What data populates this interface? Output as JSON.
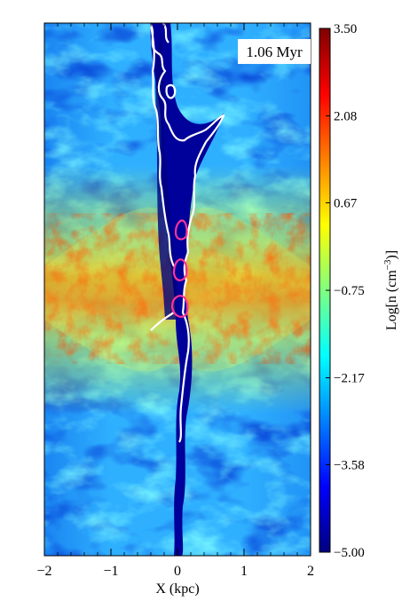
{
  "chart_data": {
    "type": "heatmap",
    "title": "",
    "annotation": "1.06 Myr",
    "xlabel": "X (kpc)",
    "ylabel": "",
    "xlim": [
      -2,
      2
    ],
    "x_ticks": [
      -2,
      -1,
      0,
      1,
      2
    ],
    "x_tick_labels": [
      "−2",
      "−1",
      "0",
      "1",
      "2"
    ],
    "colorbar": {
      "label_prefix": "Log[n (cm",
      "label_exponent": "−3",
      "label_suffix": ")]",
      "range": [
        -5.0,
        3.5
      ],
      "ticks": [
        3.5,
        2.08,
        0.67,
        -0.75,
        -2.17,
        -3.58,
        -5.0
      ],
      "tick_labels": [
        "3.50",
        "2.08",
        "0.67",
        "−0.75",
        "−2.17",
        "−3.58",
        "−5.00"
      ],
      "colormap": [
        "#00007f",
        "#0000ff",
        "#0080ff",
        "#00ffff",
        "#80ff80",
        "#ffff00",
        "#ff8000",
        "#ff0000",
        "#7f0000"
      ]
    },
    "contours": [
      {
        "level": "outflow boundary",
        "color": "#ffffff"
      },
      {
        "level": "dense gas",
        "color": "#ff3399"
      }
    ],
    "grid": false
  }
}
